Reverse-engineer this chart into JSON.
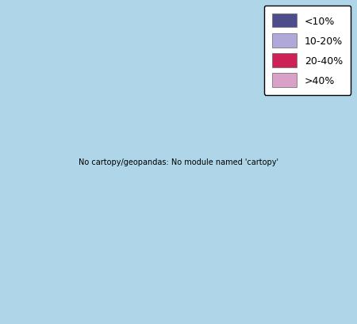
{
  "legend_labels": [
    "<10%",
    "10-20%",
    "20-40%",
    ">40%"
  ],
  "legend_colors": [
    "#4d4d8c",
    "#b0a8d8",
    "#cc2255",
    "#d9a0c8"
  ],
  "ocean_color": "#aed6e8",
  "land_default_color": "#d3d0de",
  "border_color": "#ffffff",
  "outer_border_color": "#aaaaaa",
  "country_colors": {
    "France": "#cc2255",
    "Spain": "#4d4d8c",
    "Portugal": "#4d4d8c",
    "United Kingdom": "#b0a8d8",
    "Ireland": "#4d4d8c",
    "Belgium": "#b0a8d8",
    "Netherlands": "#b0a8d8",
    "Luxembourg": "#b0a8d8",
    "Germany": "#b0a8d8",
    "Denmark": "#cc2255",
    "Sweden": "#d9a0c8",
    "Norway": "#d9a0c8",
    "Finland": "#d9a0c8",
    "Austria": "#b0a8d8",
    "Switzerland": "#b0a8d8",
    "Italy": "#4d4d8c",
    "Greece": "#4d4d8c",
    "Poland": "#4d4d8c",
    "Czech Republic": "#b0a8d8",
    "Slovakia": "#b0a8d8",
    "Hungary": "#b0a8d8",
    "Romania": "#d3d0de",
    "Bulgaria": "#d3d0de",
    "Croatia": "#d3d0de",
    "Slovenia": "#d3d0de",
    "Estonia": "#d3d0de",
    "Latvia": "#d3d0de",
    "Lithuania": "#d3d0de",
    "Belarus": "#d3d0de",
    "Ukraine": "#d3d0de",
    "Moldova": "#d3d0de",
    "Albania": "#d3d0de",
    "North Macedonia": "#d3d0de",
    "Serbia": "#d3d0de",
    "Bosnia and Herzegovina": "#d3d0de",
    "Montenegro": "#d3d0de",
    "Kosovo": "#d3d0de",
    "Iceland": "#d3d0de",
    "Malta": "#d3d0de",
    "Cyprus": "#d3d0de"
  },
  "xlim": [
    -25,
    45
  ],
  "ylim": [
    34,
    72
  ],
  "figsize": [
    4.5,
    4.1
  ],
  "dpi": 100
}
